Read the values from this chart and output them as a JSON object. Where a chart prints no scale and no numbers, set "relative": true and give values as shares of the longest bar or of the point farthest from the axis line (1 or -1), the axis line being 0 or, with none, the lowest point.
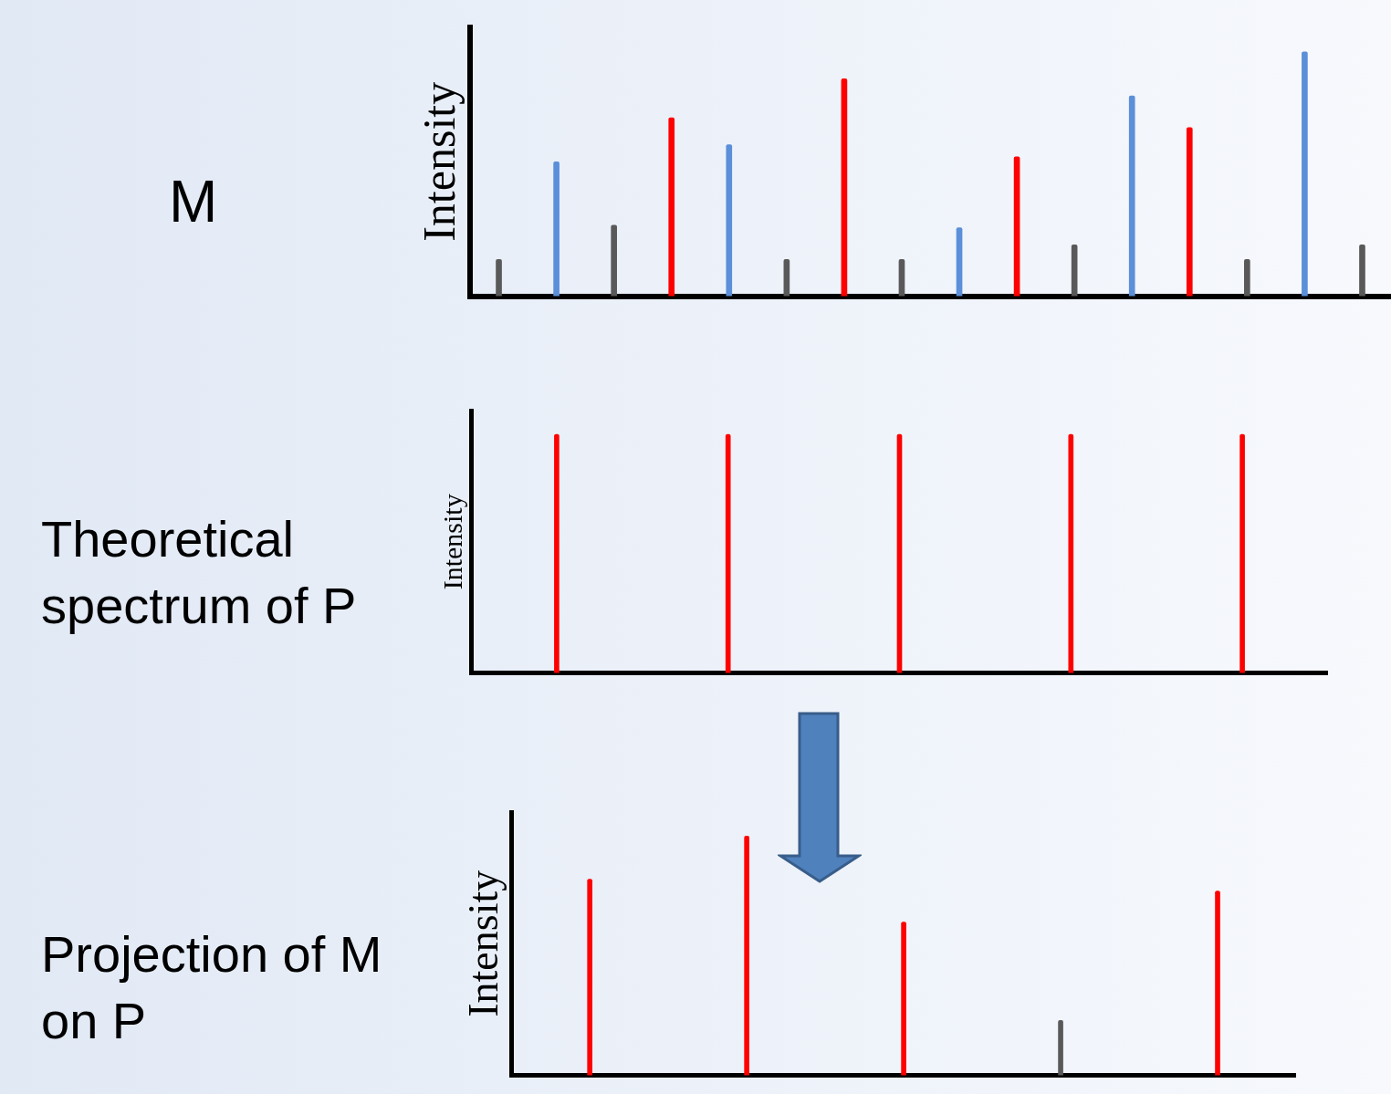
{
  "chart_data": [
    {
      "type": "bar",
      "title": "M",
      "ylabel": "Intensity",
      "relative": true,
      "categories": [
        null,
        null,
        null,
        null,
        null,
        null,
        null,
        null,
        null,
        null,
        null,
        null,
        null,
        null,
        null,
        null
      ],
      "values": [
        0.15,
        0.55,
        0.29,
        0.73,
        0.62,
        0.15,
        0.89,
        0.15,
        0.28,
        0.57,
        0.21,
        0.82,
        0.69,
        0.15,
        1,
        0.21
      ],
      "colors": [
        "#595959",
        "#5b8fd9",
        "#595959",
        "#ff0000",
        "#5b8fd9",
        "#595959",
        "#ff0000",
        "#595959",
        "#5b8fd9",
        "#ff0000",
        "#595959",
        "#5b8fd9",
        "#ff0000",
        "#595959",
        "#5b8fd9",
        "#595959"
      ]
    },
    {
      "type": "bar",
      "title": "Theoretical spectrum of P",
      "ylabel": "Intensity",
      "relative": true,
      "color": "#ff0000",
      "categories": [
        null,
        null,
        null,
        null,
        null
      ],
      "values": [
        1,
        1,
        1,
        1,
        1
      ]
    },
    {
      "type": "bar",
      "title": "Projection of M on P",
      "ylabel": "Intensity",
      "relative": true,
      "categories": [
        null,
        null,
        null,
        null,
        null
      ],
      "values": [
        0.82,
        1,
        0.64,
        0.23,
        0.77
      ],
      "colors": [
        "#ff0000",
        "#ff0000",
        "#ff0000",
        "#595959",
        "#ff0000"
      ]
    }
  ]
}
